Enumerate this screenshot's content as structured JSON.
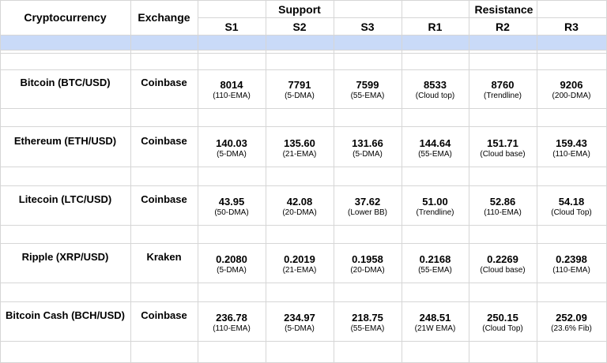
{
  "header": {
    "crypto": "Cryptocurrency",
    "exchange": "Exchange",
    "support": "Support",
    "resistance": "Resistance",
    "levels": [
      "S1",
      "S2",
      "S3",
      "R1",
      "R2",
      "R3"
    ]
  },
  "rows": [
    {
      "name": "Bitcoin (BTC/USD)",
      "exchange": "Coinbase",
      "values": [
        "8014",
        "7791",
        "7599",
        "8533",
        "8760",
        "9206"
      ],
      "notes": [
        "(110-EMA)",
        "(5-DMA)",
        "(55-EMA)",
        "(Cloud top)",
        "(Trendline)",
        "(200-DMA)"
      ]
    },
    {
      "name": "Ethereum (ETH/USD)",
      "exchange": "Coinbase",
      "values": [
        "140.03",
        "135.60",
        "131.66",
        "144.64",
        "151.71",
        "159.43"
      ],
      "notes": [
        "(5-DMA)",
        "(21-EMA)",
        "(5-DMA)",
        "(55-EMA)",
        "(Cloud base)",
        "(110-EMA)"
      ]
    },
    {
      "name": "Litecoin (LTC/USD)",
      "exchange": "Coinbase",
      "values": [
        "43.95",
        "42.08",
        "37.62",
        "51.00",
        "52.86",
        "54.18"
      ],
      "notes": [
        "(50-DMA)",
        "(20-DMA)",
        "(Lower BB)",
        "(Trendline)",
        "(110-EMA)",
        "(Cloud Top)"
      ]
    },
    {
      "name": "Ripple (XRP/USD)",
      "exchange": "Kraken",
      "values": [
        "0.2080",
        "0.2019",
        "0.1958",
        "0.2168",
        "0.2269",
        "0.2398"
      ],
      "notes": [
        "(5-DMA)",
        "(21-EMA)",
        "(20-DMA)",
        "(55-EMA)",
        "(Cloud base)",
        "(110-EMA)"
      ]
    },
    {
      "name": "Bitcoin Cash (BCH/USD)",
      "exchange": "Coinbase",
      "values": [
        "236.78",
        "234.97",
        "218.75",
        "248.51",
        "250.15",
        "252.09"
      ],
      "notes": [
        "(110-EMA)",
        "(5-DMA)",
        "(55-EMA)",
        "(21W EMA)",
        "(Cloud Top)",
        "(23.6% Fib)"
      ]
    }
  ]
}
